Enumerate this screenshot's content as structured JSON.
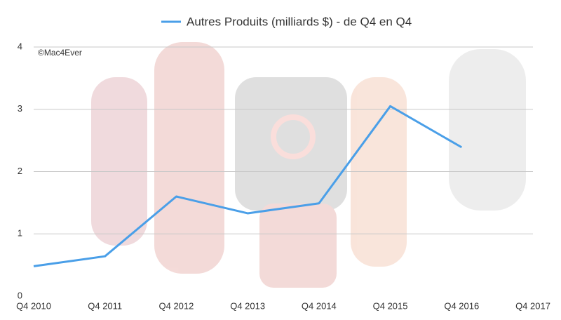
{
  "chart_data": {
    "type": "line",
    "title": "Autres Produits (milliards $) - de Q4 en Q4",
    "annotation": "©Mac4Ever",
    "categories": [
      "Q4 2010",
      "Q4 2011",
      "Q4 2012",
      "Q4 2013",
      "Q4 2014",
      "Q4 2015",
      "Q4 2016",
      "Q4 2017"
    ],
    "series": [
      {
        "name": "Autres Produits (milliards $) - de Q4 en Q4",
        "color": "#4a9fe8",
        "values": [
          0.48,
          0.64,
          1.6,
          1.33,
          1.49,
          3.05,
          2.39,
          null
        ]
      }
    ],
    "ylim": [
      0,
      4
    ],
    "yticks": [
      0,
      1,
      2,
      3,
      4
    ],
    "grid": true
  }
}
